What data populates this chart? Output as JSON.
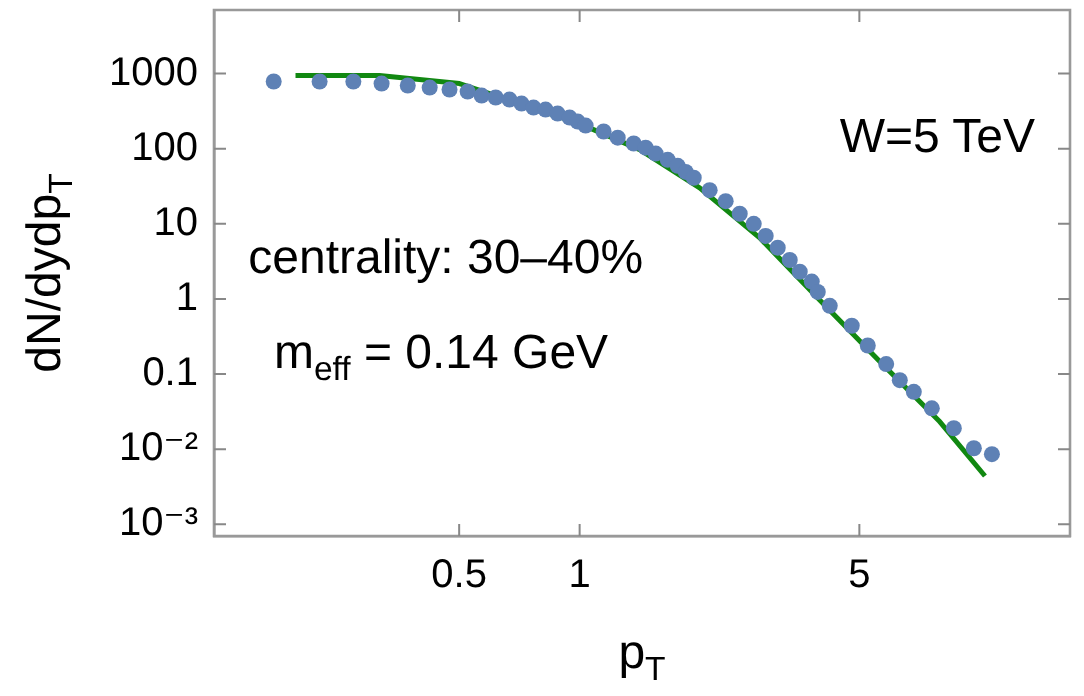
{
  "chart_data": {
    "type": "scatter",
    "xlabel": "p$_{T}$",
    "ylabel": "dN/dydp$_{T}$",
    "log": "xy",
    "grid": false,
    "legend": false,
    "xlim": [
      0.122,
      16.8
    ],
    "ylim": [
      0.0007,
      7000
    ],
    "xticks": [
      0.5,
      1,
      5
    ],
    "yticks": [
      1000,
      100,
      10,
      1,
      0.1,
      {
        "value": 0.01,
        "label": "10⁻²"
      },
      {
        "value": 0.001,
        "label": "10⁻³"
      }
    ],
    "annotations": [
      "W=5 TeV",
      "centrality: 30–40%",
      "m$_{eff}$ = 0.14 GeV"
    ],
    "series": [
      {
        "type": "scatter",
        "marker": "circle",
        "color": "#5e81b5",
        "x": [
          0.172,
          0.224,
          0.272,
          0.32,
          0.372,
          0.422,
          0.473,
          0.525,
          0.569,
          0.617,
          0.668,
          0.716,
          0.767,
          0.822,
          0.881,
          0.944,
          0.989,
          1.035,
          1.148,
          1.245,
          1.365,
          1.462,
          1.549,
          1.66,
          1.758,
          1.841,
          1.928,
          2.113,
          2.317,
          2.512,
          2.723,
          2.917,
          3.126,
          3.35,
          3.548,
          3.802,
          3.936,
          4.217,
          4.786,
          5.248,
          5.834,
          6.31,
          6.839,
          7.586,
          8.61,
          9.661,
          10.72
        ],
        "values": [
          782,
          782,
          782,
          735,
          692,
          650,
          612,
          575,
          509,
          479,
          450,
          398,
          352,
          331,
          293,
          259,
          229,
          203,
          169,
          140,
          117,
          103,
          86,
          71,
          59,
          49,
          41,
          28,
          20,
          13.6,
          10,
          6.9,
          4.8,
          3.3,
          2.3,
          1.7,
          1.24,
          0.81,
          0.44,
          0.24,
          0.136,
          0.083,
          0.058,
          0.035,
          0.019,
          0.0103,
          0.0086
        ]
      },
      {
        "type": "line",
        "marker": "none",
        "color": "#118811",
        "x": [
          0.195,
          0.316,
          0.501,
          0.708,
          1,
          1.413,
          1.995,
          2.818,
          3.98,
          5.6,
          7.9,
          10.3
        ],
        "values": [
          940,
          940,
          736,
          398,
          215,
          97,
          30,
          6.5,
          0.97,
          0.15,
          0.024,
          0.0044
        ]
      }
    ]
  }
}
